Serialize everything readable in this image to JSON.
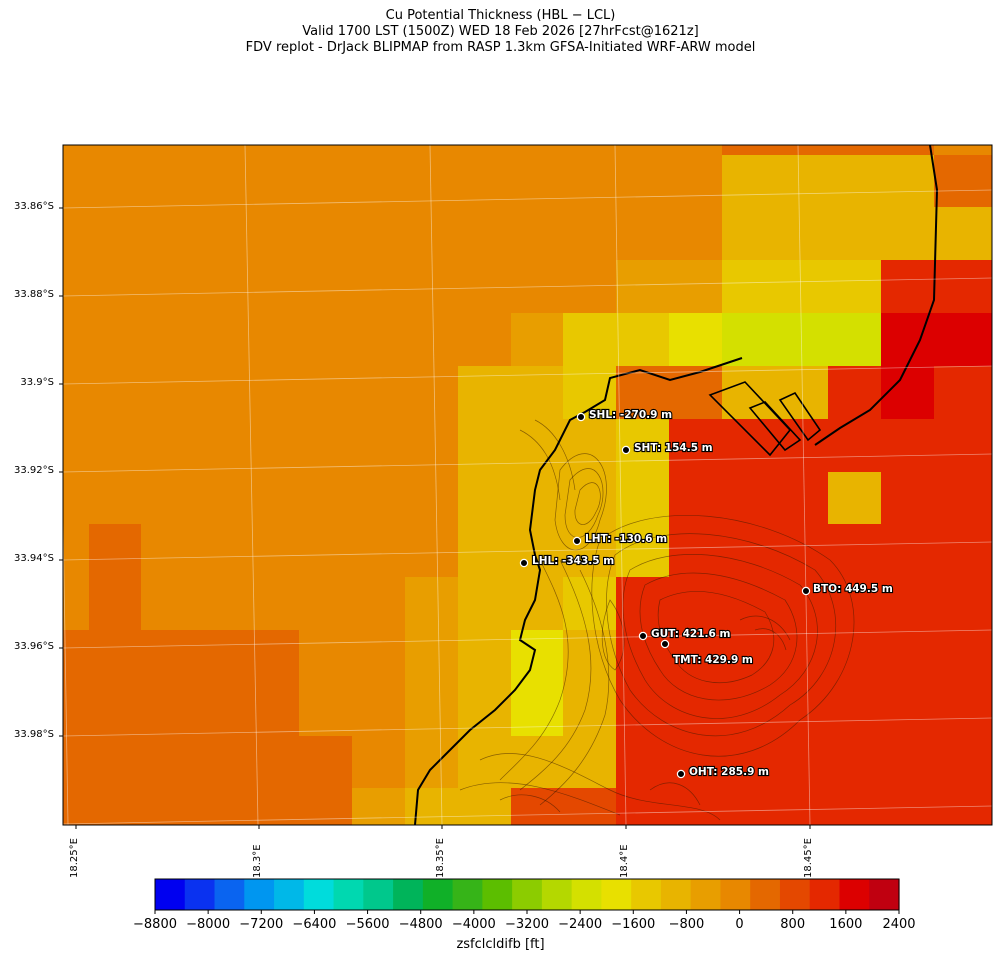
{
  "title": {
    "line1": "Cu Potential Thickness (HBL − LCL)",
    "line2": "Valid 1700 LST (1500Z) WED 18 Feb 2026 [27hrFcst@1621z]",
    "line3": "FDV replot - DrJack BLIPMAP from RASP 1.3km GFSA-Initiated WRF-ARW model"
  },
  "axes": {
    "lat_labels": [
      "33.86°S",
      "33.88°S",
      "33.9°S",
      "33.92°S",
      "33.94°S",
      "33.96°S",
      "33.98°S"
    ],
    "lon_labels": [
      "18.25°E",
      "18.3°E",
      "18.35°E",
      "18.4°E",
      "18.45°E"
    ]
  },
  "colorbar": {
    "label": "zsfclcldifb [ft]",
    "ticks": [
      "−8800",
      "−8000",
      "−7200",
      "−6400",
      "−5600",
      "−4800",
      "−4000",
      "−3200",
      "−2400",
      "−1600",
      "−800",
      "0",
      "800",
      "1600",
      "2400"
    ],
    "colors": [
      "#0000f0",
      "#0a32f0",
      "#0a64f0",
      "#0096f0",
      "#00b8e8",
      "#00dcdc",
      "#00d8b0",
      "#00c88c",
      "#00b45a",
      "#10b028",
      "#36b418",
      "#5cbe00",
      "#8ccc00",
      "#b4d800",
      "#d4e000",
      "#e8e000",
      "#e8c800",
      "#e8b400",
      "#e89e00",
      "#e88800",
      "#e46800",
      "#e44800",
      "#e42800",
      "#dc0000",
      "#c00010"
    ]
  },
  "stations": [
    {
      "label": "SHL: -270.9 m"
    },
    {
      "label": "SHT: 154.5 m"
    },
    {
      "label": "LHT: -130.6 m"
    },
    {
      "label": "LHL: -343.5 m"
    },
    {
      "label": "BTO: 449.5 m"
    },
    {
      "label": "GUT: 421.6 m"
    },
    {
      "label": "TMT: 429.9 m"
    },
    {
      "label": "OHT: 285.9 m"
    }
  ]
}
